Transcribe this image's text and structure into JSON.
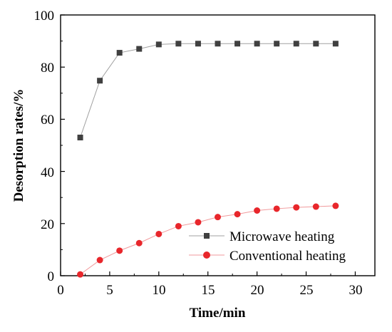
{
  "chart_data": {
    "type": "line",
    "xlabel": "Time/min",
    "ylabel": "Desorption rates/%",
    "xlim": [
      0,
      32
    ],
    "ylim": [
      0,
      100
    ],
    "xticks": [
      "0",
      "5",
      "10",
      "15",
      "20",
      "25",
      "30"
    ],
    "yticks": [
      "0",
      "20",
      "40",
      "60",
      "80",
      "100"
    ],
    "legend_position": "bottom-right",
    "grid": false,
    "series": [
      {
        "name": "Microwave heating",
        "marker": "square",
        "color": "#404040",
        "line_color": "#a0a0a0",
        "x": [
          2,
          4,
          6,
          8,
          10,
          12,
          14,
          16,
          18,
          20,
          22,
          24,
          26,
          28
        ],
        "y": [
          53,
          74.8,
          85.5,
          87,
          88.7,
          89,
          89,
          89,
          89,
          89,
          89,
          89,
          89,
          89
        ]
      },
      {
        "name": "Conventional heating",
        "marker": "circle",
        "color": "#e8262b",
        "line_color": "#f19a9c",
        "x": [
          2,
          4,
          6,
          8,
          10,
          12,
          14,
          16,
          18,
          20,
          22,
          24,
          26,
          28
        ],
        "y": [
          0.5,
          6,
          9.6,
          12.5,
          16,
          19,
          20.5,
          22.5,
          23.6,
          25,
          25.7,
          26.2,
          26.5,
          26.8
        ]
      }
    ]
  }
}
